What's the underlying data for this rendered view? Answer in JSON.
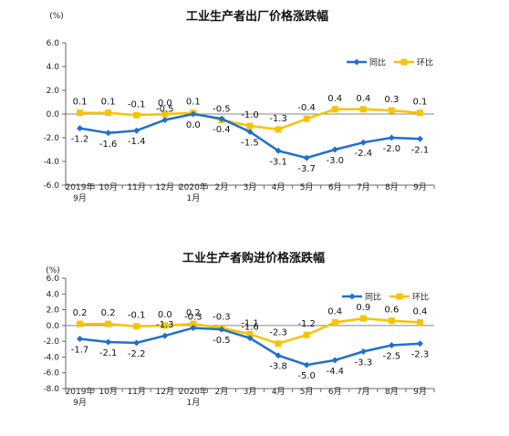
{
  "chart_data": [
    {
      "type": "line",
      "title": "工业生产者出厂价格涨跌幅",
      "unit": "(%)",
      "categories": [
        "2019年9月",
        "10月",
        "11月",
        "12月",
        "2020年1月",
        "2月",
        "3月",
        "4月",
        "5月",
        "6月",
        "7月",
        "8月",
        "9月"
      ],
      "category_lines": [
        [
          "2019年",
          "9月"
        ],
        [
          "10月"
        ],
        [
          "11月"
        ],
        [
          "12月"
        ],
        [
          "2020年",
          "1月"
        ],
        [
          "2月"
        ],
        [
          "3月"
        ],
        [
          "4月"
        ],
        [
          "5月"
        ],
        [
          "6月"
        ],
        [
          "7月"
        ],
        [
          "8月"
        ],
        [
          "9月"
        ]
      ],
      "ylim": [
        -6.0,
        6.0
      ],
      "yticks": [
        "6.0",
        "4.0",
        "2.0",
        "0.0",
        "-2.0",
        "-4.0",
        "-6.0"
      ],
      "ytick_values": [
        6,
        4,
        2,
        0,
        -2,
        -4,
        -6
      ],
      "legend_position": "top-right",
      "series": [
        {
          "name": "同比",
          "color": "#1f6fd1",
          "values": [
            -1.2,
            -1.6,
            -1.4,
            -0.5,
            0.0,
            -0.4,
            -1.5,
            -3.1,
            -3.7,
            -3.0,
            -2.4,
            -2.0,
            -2.1
          ],
          "labels": [
            "-1.2",
            "-1.6",
            "-1.4",
            "-0.5",
            "0.0",
            "-0.4",
            "-1.5",
            "-3.1",
            "-3.7",
            "-3.0",
            "-2.4",
            "-2.0",
            "-2.1"
          ]
        },
        {
          "name": "环比",
          "color": "#f5c400",
          "values": [
            0.1,
            0.1,
            -0.1,
            0.0,
            0.1,
            -0.5,
            -1.0,
            -1.3,
            -0.4,
            0.4,
            0.4,
            0.3,
            0.1
          ],
          "labels": [
            "0.1",
            "0.1",
            "-0.1",
            "0.0",
            "0.1",
            "-0.5",
            "-1.0",
            "-1.3",
            "-0.4",
            "0.4",
            "0.4",
            "0.3",
            "0.1"
          ]
        }
      ]
    },
    {
      "type": "line",
      "title": "工业生产者购进价格涨跌幅",
      "unit": "(%)",
      "categories": [
        "2019年9月",
        "10月",
        "11月",
        "12月",
        "2020年1月",
        "2月",
        "3月",
        "4月",
        "5月",
        "6月",
        "7月",
        "8月",
        "9月"
      ],
      "category_lines": [
        [
          "2019年",
          "9月"
        ],
        [
          "10月"
        ],
        [
          "11月"
        ],
        [
          "12月"
        ],
        [
          "2020年",
          "1月"
        ],
        [
          "2月"
        ],
        [
          "3月"
        ],
        [
          "4月"
        ],
        [
          "5月"
        ],
        [
          "6月"
        ],
        [
          "7月"
        ],
        [
          "8月"
        ],
        [
          "9月"
        ]
      ],
      "ylim": [
        -8.0,
        6.0
      ],
      "yticks": [
        "6.0",
        "4.0",
        "2.0",
        "0.0",
        "-2.0",
        "-4.0",
        "-6.0",
        "-8.0"
      ],
      "ytick_values": [
        6,
        4,
        2,
        0,
        -2,
        -4,
        -6,
        -8
      ],
      "legend_position": "top-right",
      "series": [
        {
          "name": "同比",
          "color": "#1f6fd1",
          "values": [
            -1.7,
            -2.1,
            -2.2,
            -1.3,
            -0.3,
            -0.5,
            -1.6,
            -3.8,
            -5.0,
            -4.4,
            -3.3,
            -2.5,
            -2.3
          ],
          "labels": [
            "-1.7",
            "-2.1",
            "-2.2",
            "-1.3",
            "-0.3",
            "-0.5",
            "-1.6",
            "-3.8",
            "-5.0",
            "-4.4",
            "-3.3",
            "-2.5",
            "-2.3"
          ]
        },
        {
          "name": "环比",
          "color": "#f5c400",
          "values": [
            0.2,
            0.2,
            -0.1,
            0.0,
            0.2,
            -0.3,
            -1.1,
            -2.3,
            -1.2,
            0.4,
            0.9,
            0.6,
            0.4
          ],
          "labels": [
            "0.2",
            "0.2",
            "-0.1",
            "0.0",
            "0.2",
            "-0.3",
            "-1.1",
            "-2.3",
            "-1.2",
            "0.4",
            "0.9",
            "0.6",
            "0.4"
          ]
        }
      ]
    }
  ]
}
